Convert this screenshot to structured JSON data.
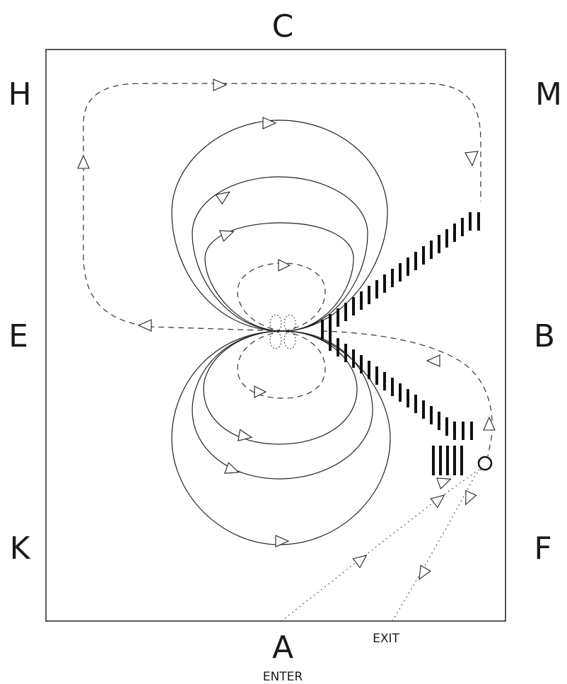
{
  "labels": {
    "top": "C",
    "top_left": "H",
    "top_right": "M",
    "left": "E",
    "right": "B",
    "bottom_left": "K",
    "bottom_right": "F",
    "bottom": "A",
    "enter": "ENTER",
    "exit": "EXIT"
  },
  "colors": {
    "line": "#222222",
    "background": "#ffffff"
  }
}
